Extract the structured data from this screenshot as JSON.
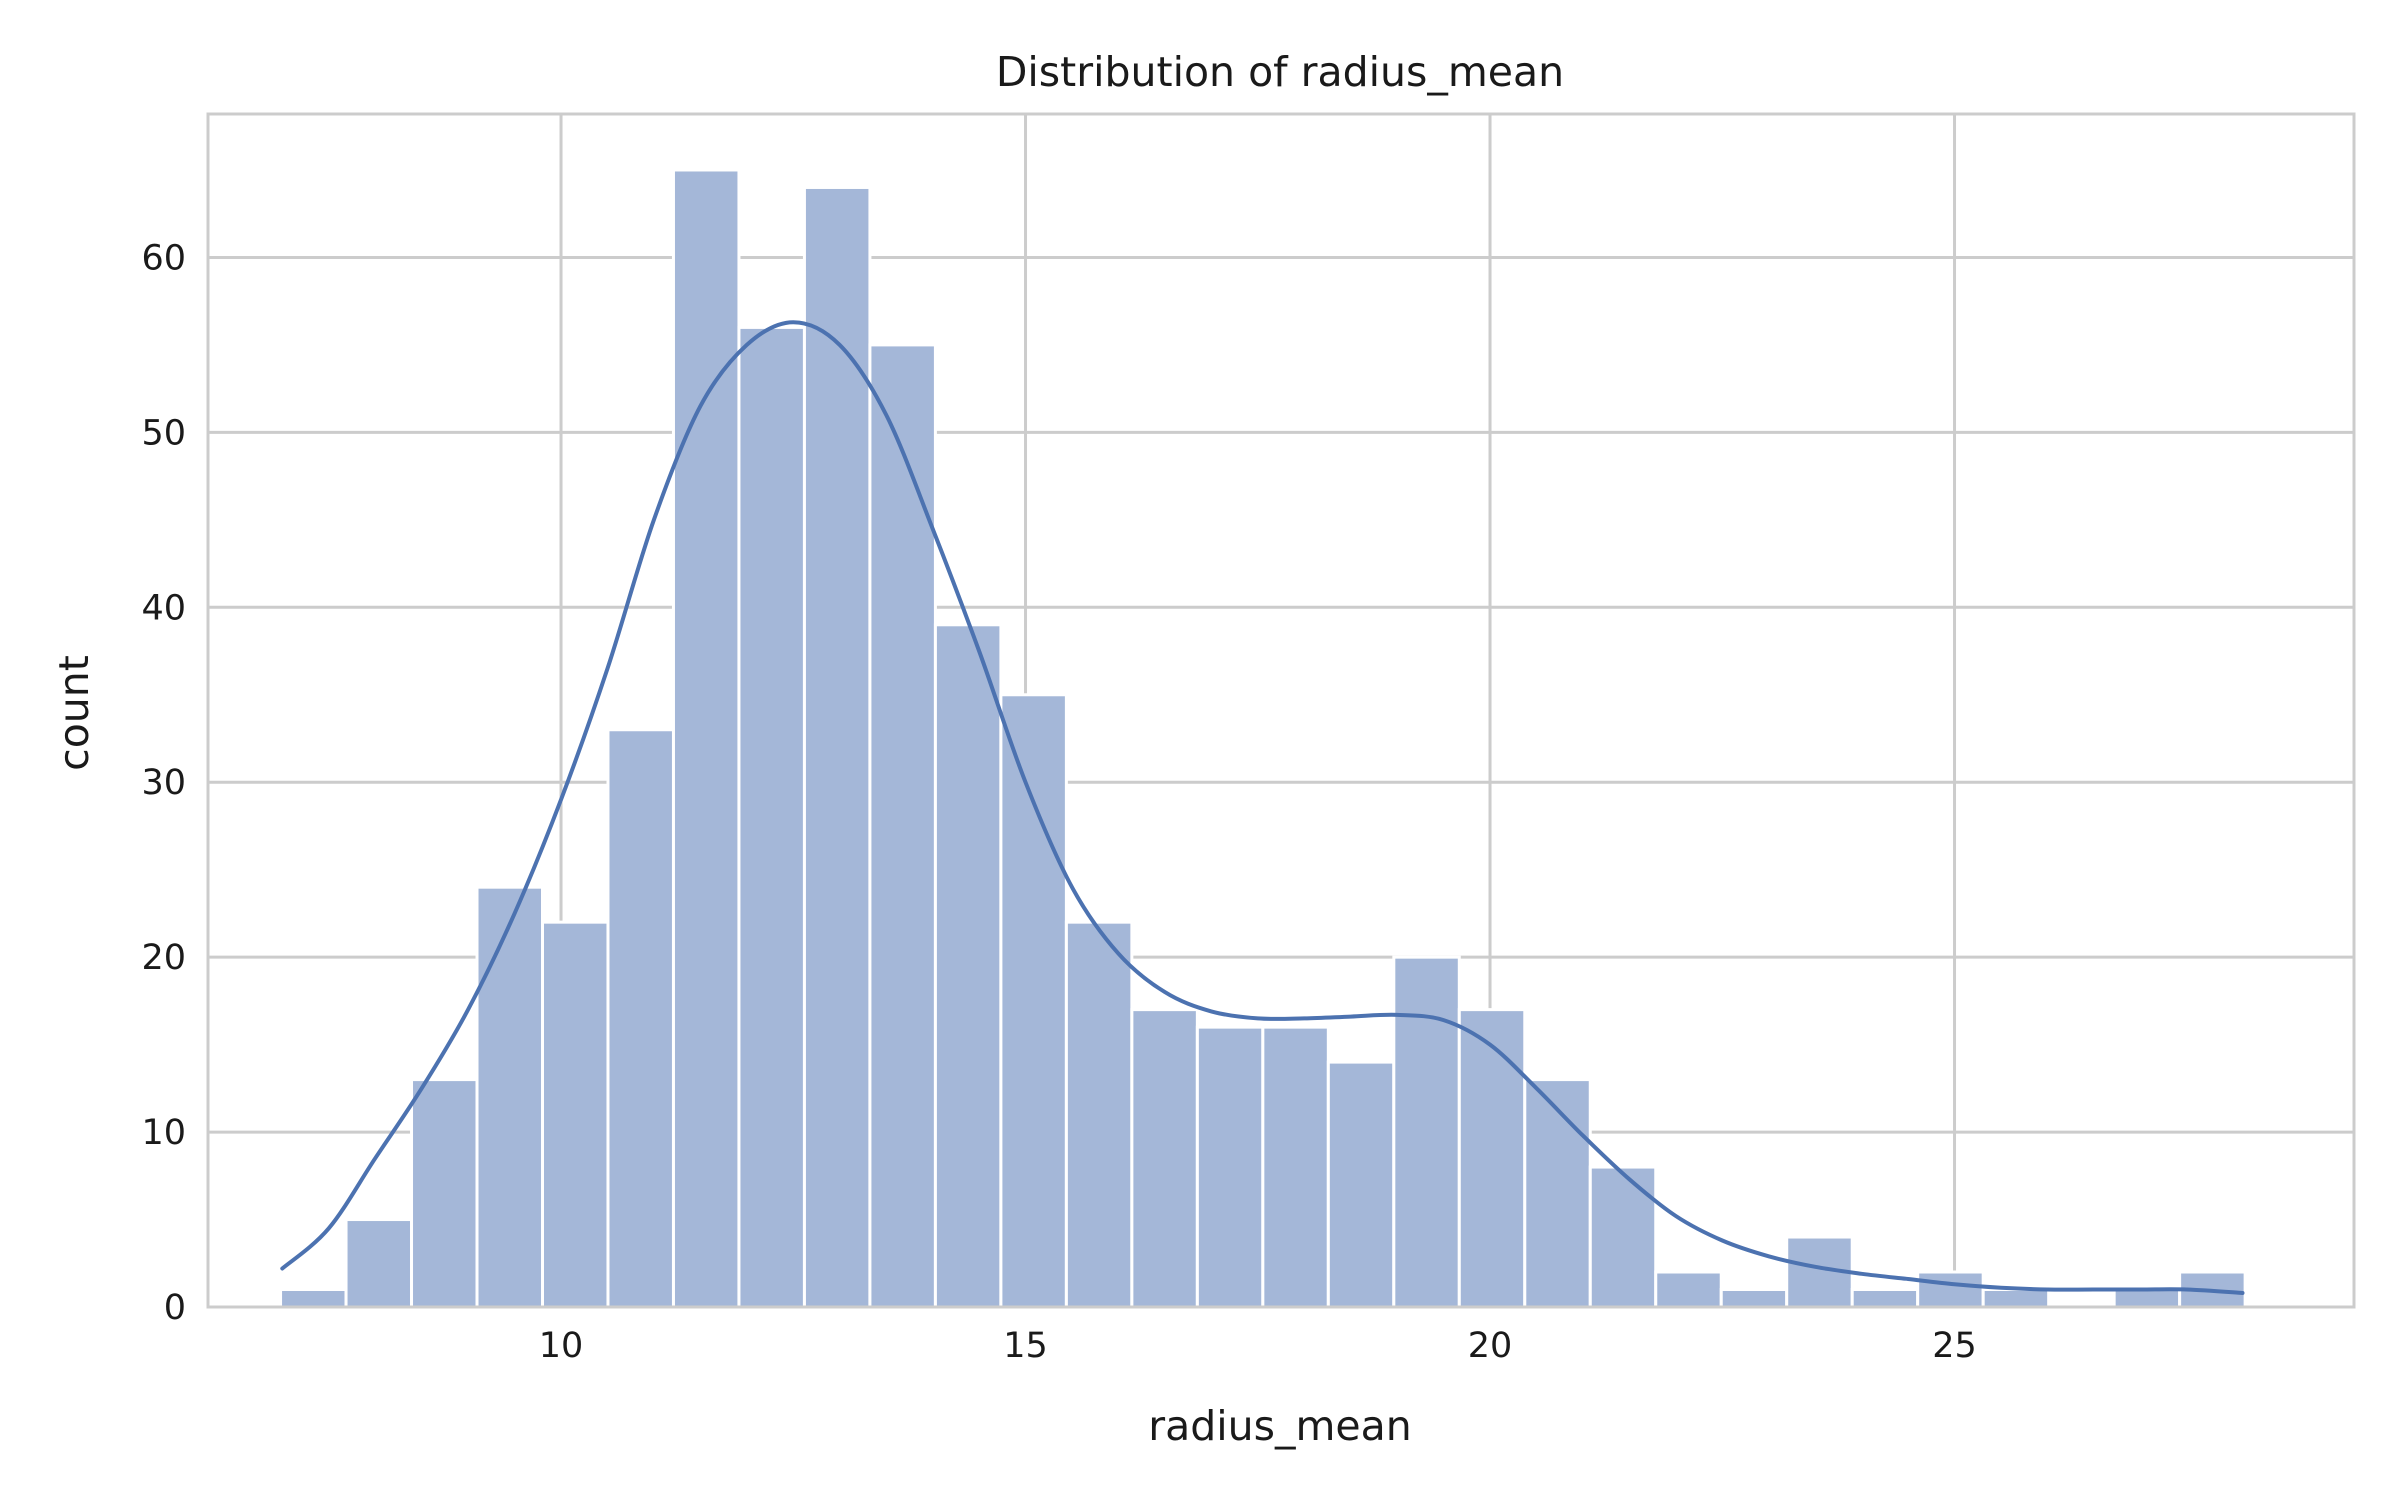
{
  "chart_data": {
    "type": "bar",
    "subtype": "histogram_with_kde",
    "title": "Distribution of radius_mean",
    "xlabel": "radius_mean",
    "ylabel": "count",
    "xlim": [
      6.2,
      29.3
    ],
    "ylim": [
      0,
      68.2
    ],
    "xticks": [
      10,
      15,
      20,
      25
    ],
    "yticks": [
      0,
      10,
      20,
      30,
      40,
      50,
      60
    ],
    "grid": true,
    "bin_start": 6.981,
    "bin_width": 0.7049,
    "counts": [
      1,
      5,
      13,
      24,
      22,
      33,
      65,
      56,
      64,
      55,
      39,
      35,
      22,
      17,
      16,
      16,
      14,
      20,
      17,
      13,
      8,
      2,
      1,
      4,
      1,
      2,
      1,
      0,
      1,
      2
    ],
    "series": [
      {
        "name": "",
        "kind": "kde",
        "x": [
          7.0,
          7.5,
          8.0,
          8.5,
          9.0,
          9.5,
          10.0,
          10.5,
          11.0,
          11.5,
          12.0,
          12.5,
          13.0,
          13.5,
          14.0,
          14.5,
          15.0,
          15.5,
          16.0,
          16.5,
          17.0,
          17.5,
          18.0,
          18.5,
          19.0,
          19.5,
          20.0,
          20.5,
          21.0,
          21.5,
          22.0,
          22.5,
          23.0,
          23.5,
          24.0,
          24.5,
          25.0,
          25.5,
          26.0,
          26.5,
          27.0,
          27.5,
          28.1
        ],
        "y": [
          2.2,
          4.5,
          8.5,
          12.5,
          17.0,
          22.5,
          29.0,
          36.5,
          45.0,
          51.5,
          55.0,
          56.3,
          55.0,
          51.0,
          44.5,
          37.5,
          30.0,
          24.0,
          20.2,
          18.0,
          16.9,
          16.5,
          16.5,
          16.6,
          16.7,
          16.4,
          15.0,
          12.5,
          9.8,
          7.3,
          5.2,
          3.8,
          2.9,
          2.3,
          1.9,
          1.6,
          1.3,
          1.1,
          1.0,
          1.0,
          1.0,
          1.0,
          0.8
        ]
      }
    ],
    "colors": {
      "bar_fill": "#a4b7d8",
      "kde_line": "#4c72b0",
      "grid": "#cccccc",
      "spine": "#cccccc",
      "text": "#1a1a1a",
      "background": "#ffffff"
    }
  }
}
